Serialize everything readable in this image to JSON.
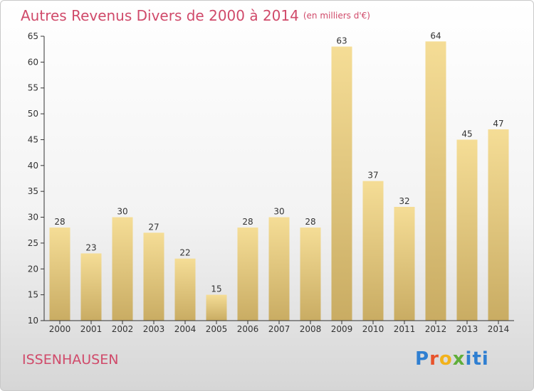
{
  "title": "Autres Revenus Divers de 2000 à 2014",
  "subtitle": "(en milliers d'€)",
  "place_label": "ISSENHAUSEN",
  "logo": {
    "parts": [
      "P",
      "r",
      "o",
      "x",
      "iti"
    ],
    "colors": [
      "#2f7fd1",
      "#e8532b",
      "#f2b21b",
      "#5fae3a",
      "#2f7fd1"
    ]
  },
  "colors": {
    "title": "#d04a6a",
    "bar_top": "#f5dd96",
    "bar_bottom": "#c9ac63",
    "axis": "#333333",
    "grid": "#d8d8d8"
  },
  "chart_data": {
    "type": "bar",
    "categories": [
      "2000",
      "2001",
      "2002",
      "2003",
      "2004",
      "2005",
      "2006",
      "2007",
      "2008",
      "2009",
      "2010",
      "2011",
      "2012",
      "2013",
      "2014"
    ],
    "values": [
      28,
      23,
      30,
      27,
      22,
      15,
      28,
      30,
      28,
      63,
      37,
      32,
      64,
      45,
      47
    ],
    "title": "Autres Revenus Divers de 2000 à 2014",
    "xlabel": "",
    "ylabel": "",
    "ylim": [
      10,
      65
    ],
    "yticks": [
      10,
      15,
      20,
      25,
      30,
      35,
      40,
      45,
      50,
      55,
      60,
      65
    ],
    "grid": false,
    "data_labels": true
  }
}
